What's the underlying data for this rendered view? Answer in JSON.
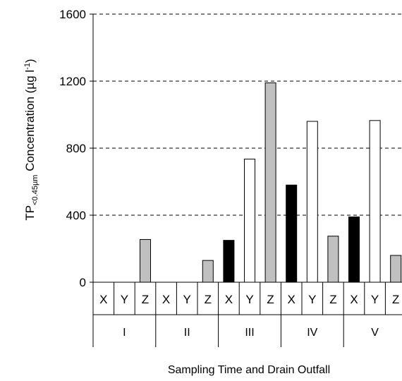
{
  "chart_data": {
    "type": "bar",
    "ylabel": {
      "main": "TP",
      "subscript": "<0.45µm",
      "rest": " Concentration (µg l",
      "superscript": "-1",
      "close": ")"
    },
    "xlabel": "Sampling Time and Drain Outfall",
    "ylim": [
      0,
      1600
    ],
    "yticks": [
      "0",
      "400",
      "800",
      "1200",
      "1600"
    ],
    "gridlines": [
      400,
      800,
      1200,
      1600
    ],
    "grid_style": "dashed",
    "groups": [
      "I",
      "II",
      "III",
      "IV",
      "V"
    ],
    "outfalls": [
      "X",
      "Y",
      "Z"
    ],
    "series": [
      {
        "name": "X",
        "color": "#000000",
        "values": [
          0,
          0,
          250,
          580,
          390
        ]
      },
      {
        "name": "Y",
        "color": "#ffffff",
        "values": [
          0,
          0,
          735,
          960,
          965
        ]
      },
      {
        "name": "Z",
        "color": "#c0c0c0",
        "values": [
          255,
          130,
          1190,
          275,
          160
        ]
      }
    ]
  }
}
